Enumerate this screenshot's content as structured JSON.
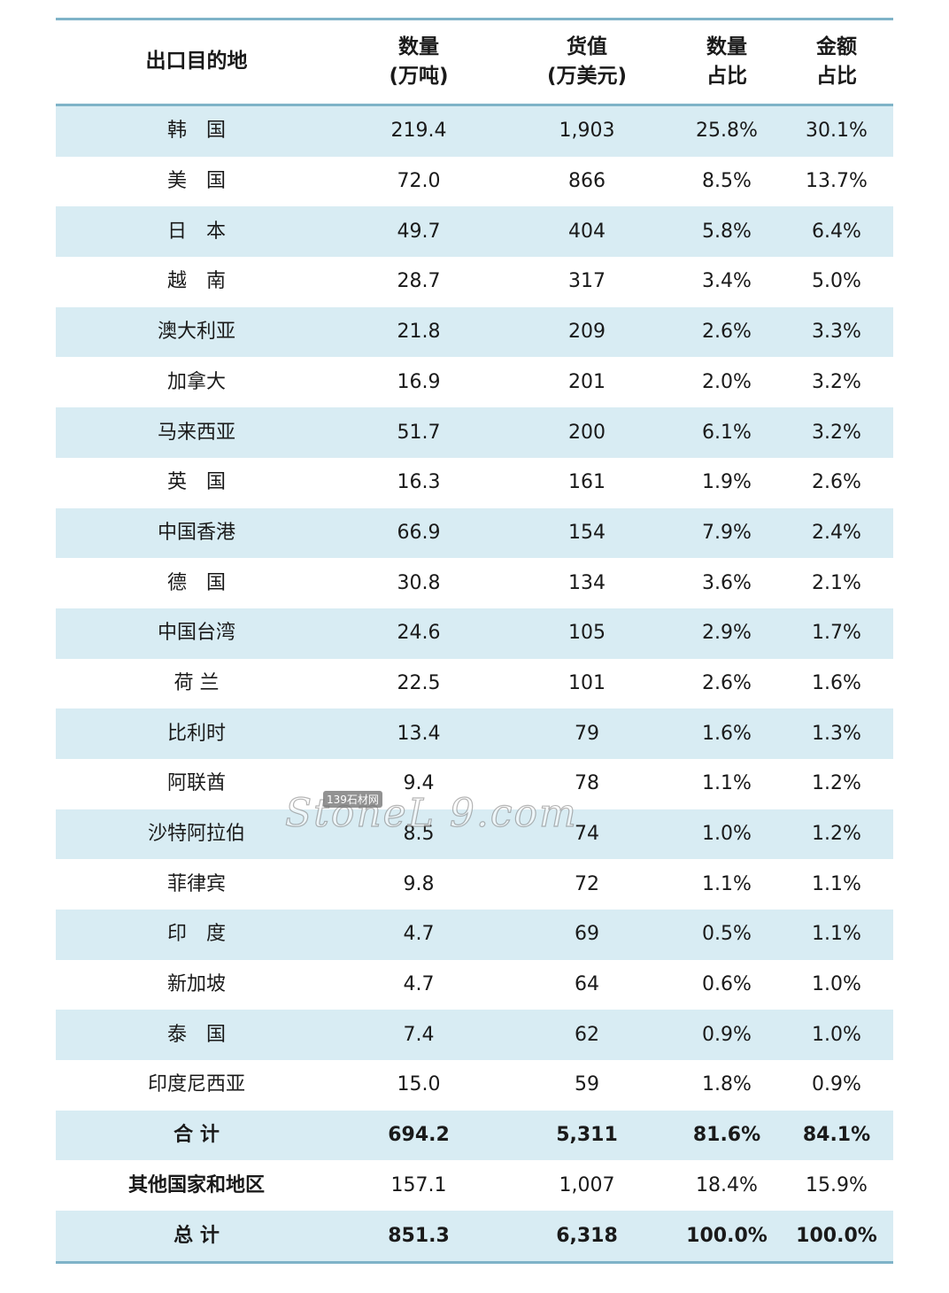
{
  "table": {
    "headers": [
      "出口目的地",
      "数量\n(万吨)",
      "货值\n(万美元)",
      "数量\n占比",
      "金额\n占比"
    ],
    "rows": [
      [
        "韩　国",
        "219.4",
        "1,903",
        "25.8%",
        "30.1%"
      ],
      [
        "美　国",
        "72.0",
        "866",
        "8.5%",
        "13.7%"
      ],
      [
        "日　本",
        "49.7",
        "404",
        "5.8%",
        "6.4%"
      ],
      [
        "越　南",
        "28.7",
        "317",
        "3.4%",
        "5.0%"
      ],
      [
        "澳大利亚",
        "21.8",
        "209",
        "2.6%",
        "3.3%"
      ],
      [
        "加拿大",
        "16.9",
        "201",
        "2.0%",
        "3.2%"
      ],
      [
        "马来西亚",
        "51.7",
        "200",
        "6.1%",
        "3.2%"
      ],
      [
        "英　国",
        "16.3",
        "161",
        "1.9%",
        "2.6%"
      ],
      [
        "中国香港",
        "66.9",
        "154",
        "7.9%",
        "2.4%"
      ],
      [
        "德　国",
        "30.8",
        "134",
        "3.6%",
        "2.1%"
      ],
      [
        "中国台湾",
        "24.6",
        "105",
        "2.9%",
        "1.7%"
      ],
      [
        "荷 兰",
        "22.5",
        "101",
        "2.6%",
        "1.6%"
      ],
      [
        "比利时",
        "13.4",
        "79",
        "1.6%",
        "1.3%"
      ],
      [
        "阿联酋",
        "9.4",
        "78",
        "1.1%",
        "1.2%"
      ],
      [
        "沙特阿拉伯",
        "8.5",
        "74",
        "1.0%",
        "1.2%"
      ],
      [
        "菲律宾",
        "9.8",
        "72",
        "1.1%",
        "1.1%"
      ],
      [
        "印　度",
        "4.7",
        "69",
        "0.5%",
        "1.1%"
      ],
      [
        "新加坡",
        "4.7",
        "64",
        "0.6%",
        "1.0%"
      ],
      [
        "泰　国",
        "7.4",
        "62",
        "0.9%",
        "1.0%"
      ],
      [
        "印度尼西亚",
        "15.0",
        "59",
        "1.8%",
        "0.9%"
      ],
      [
        "合 计",
        "694.2",
        "5,311",
        "81.6%",
        "84.1%"
      ],
      [
        "其他国家和地区",
        "157.1",
        "1,007",
        "18.4%",
        "15.9%"
      ],
      [
        "总 计",
        "851.3",
        "6,318",
        "100.0%",
        "100.0%"
      ]
    ]
  },
  "watermark": {
    "text": "StoneL 9.com",
    "badge": "139石材网"
  },
  "colors": {
    "stripe": "#d8ecf3",
    "rule": "#7fb3c8"
  }
}
